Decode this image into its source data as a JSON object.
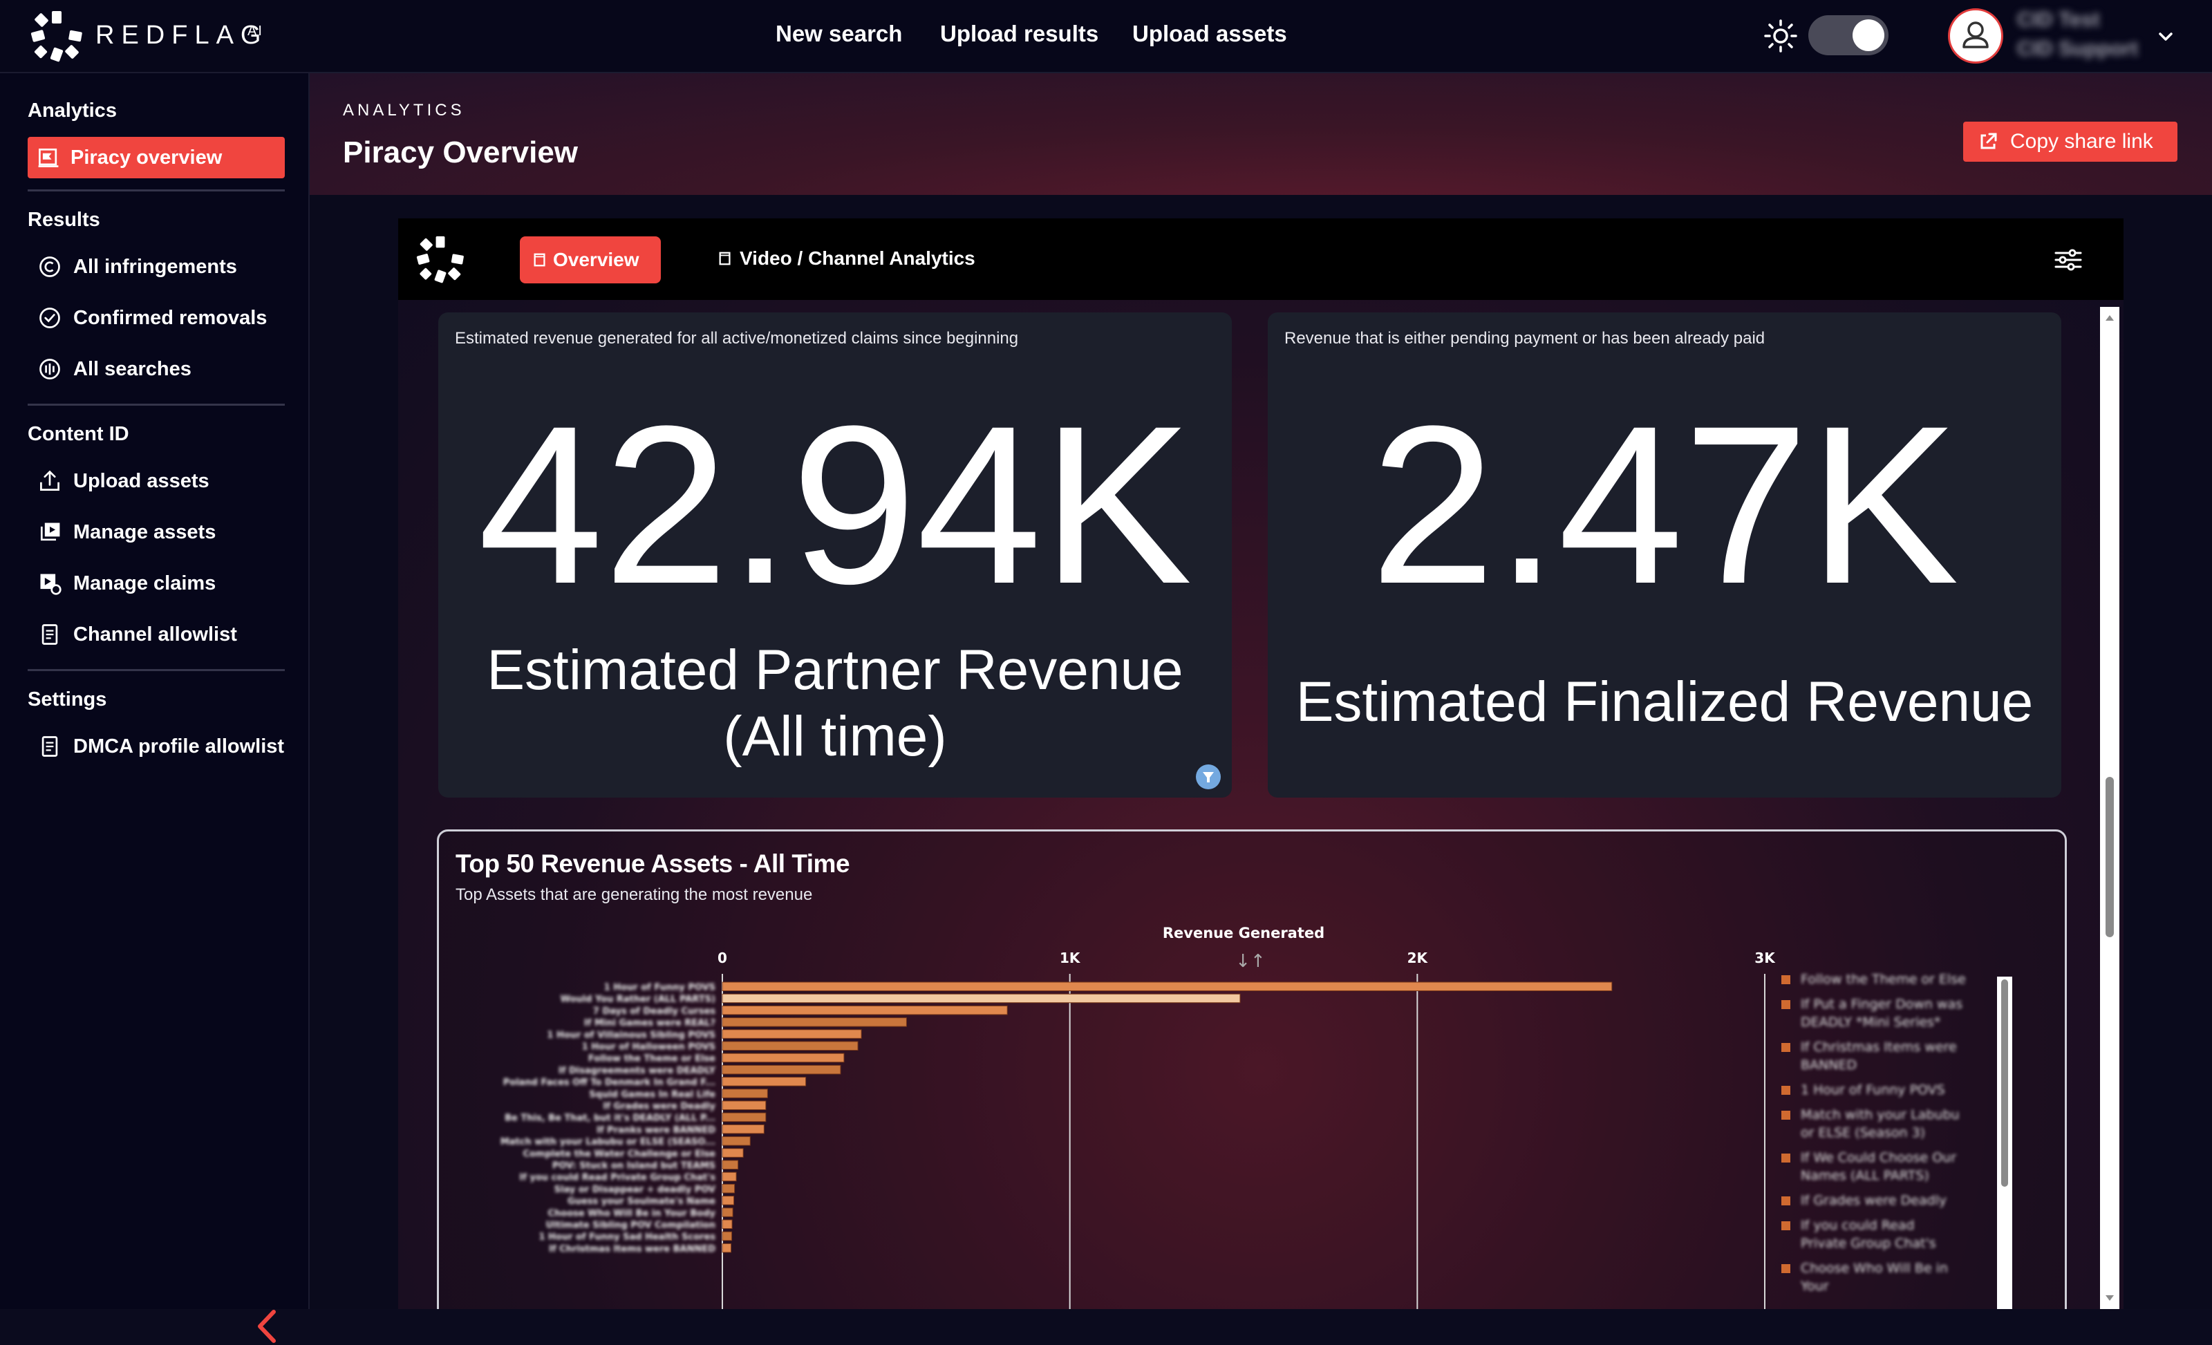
{
  "app": {
    "brand": "REDFLAG",
    "brand_sup": "AI"
  },
  "topnav": [
    {
      "label": "New search"
    },
    {
      "label": "Upload results"
    },
    {
      "label": "Upload assets"
    }
  ],
  "theme_toggle": {
    "state": "on"
  },
  "user": {
    "line1": "CID Test",
    "line2": "CID Support"
  },
  "sidebar": {
    "sections": [
      {
        "title": "Analytics",
        "items": [
          {
            "label": "Piracy overview",
            "icon": "chart-flag-icon",
            "active": true
          }
        ]
      },
      {
        "title": "Results",
        "items": [
          {
            "label": "All infringements",
            "icon": "copyright-icon"
          },
          {
            "label": "Confirmed removals",
            "icon": "check-circle-icon"
          },
          {
            "label": "All searches",
            "icon": "scan-icon"
          }
        ]
      },
      {
        "title": "Content ID",
        "items": [
          {
            "label": "Upload assets",
            "icon": "upload-icon"
          },
          {
            "label": "Manage assets",
            "icon": "media-stack-icon"
          },
          {
            "label": "Manage claims",
            "icon": "claim-icon"
          },
          {
            "label": "Channel allowlist",
            "icon": "clipboard-icon"
          }
        ]
      },
      {
        "title": "Settings",
        "items": [
          {
            "label": "DMCA profile allowlist",
            "icon": "clipboard-icon"
          }
        ]
      }
    ]
  },
  "header": {
    "eyebrow": "ANALYTICS",
    "title": "Piracy Overview",
    "share_button": "Copy share link"
  },
  "dashboard": {
    "tabs": [
      {
        "label": "Overview",
        "active": true
      },
      {
        "label": "Video / Channel Analytics",
        "active": false
      }
    ],
    "kpis": [
      {
        "description": "Estimated revenue generated for all active/monetized claims since beginning",
        "value": "42.94K",
        "caption_line1": "Estimated Partner Revenue",
        "caption_line2": "(All time)"
      },
      {
        "description": "Revenue that is either pending payment or has been already paid",
        "value": "2.47K",
        "caption_line1": "Estimated Finalized Revenue",
        "caption_line2": ""
      }
    ],
    "top_chart": {
      "title": "Top 50 Revenue Assets - All Time",
      "subtitle": "Top Assets that are generating the most revenue"
    }
  },
  "chart_data": {
    "type": "bar",
    "orientation": "horizontal",
    "title": "Top 50 Revenue Assets - All Time",
    "subtitle": "Top Assets that are generating the most revenue",
    "xlabel": "Revenue Generated",
    "xlim": [
      0,
      3000
    ],
    "x_ticks": [
      0,
      1000,
      2000,
      3000
    ],
    "x_tick_labels": [
      "0",
      "1K",
      "2K",
      "3K"
    ],
    "grid": true,
    "categories": [
      "1 Hour of Funny POVS",
      "Would You Rather (ALL PARTS)",
      "7 Days of Deadly Curses",
      "If Mini Games were REAL?",
      "1 Hour of Villainous Sibling POVS",
      "1 Hour of Halloween POVS",
      "Follow the Theme or Else",
      "If Disagreements were DEADLY",
      "Poland Faces Off To Denmark In Grand F...",
      "Squid Games In Real Life",
      "If Grades were Deadly",
      "Be This, Be That, but it's DEADLY (ALL P...",
      "If Pranks were BANNED",
      "Match with your Labubu or ELSE (SEASO...",
      "Complete the Water Challenge or Else",
      "POV: Stuck on Island but TEAMS",
      "If you could Read Private Group Chat's",
      "Slay or Disappear + deadly POV",
      "Guess your Soulmate's Name",
      "Choose Who Will Be in Your Body",
      "Ultimate Sibling POV Compilation",
      "1 Hour of Funny Sad Health Scores",
      "If Christmas Items were BANNED"
    ],
    "values": [
      2560,
      1490,
      820,
      530,
      400,
      390,
      350,
      340,
      240,
      130,
      125,
      125,
      120,
      80,
      60,
      45,
      40,
      35,
      33,
      30,
      28,
      27,
      25
    ],
    "series_colors": [
      "#e0884e",
      "#f2c9a0",
      "#c9763c"
    ],
    "legend_position": "right",
    "legend": [
      "Follow the Theme or Else",
      "If Put a Finger Down was DEADLY *Mini Series*",
      "If Christmas Items were BANNED",
      "1 Hour of Funny POVS",
      "Match with your Labubu or ELSE (Season 3)",
      "If We Could Choose Our Names (ALL PARTS)",
      "If Grades were Deadly",
      "If you could Read Private Group Chat's",
      "Choose Who Will Be in Your"
    ]
  }
}
